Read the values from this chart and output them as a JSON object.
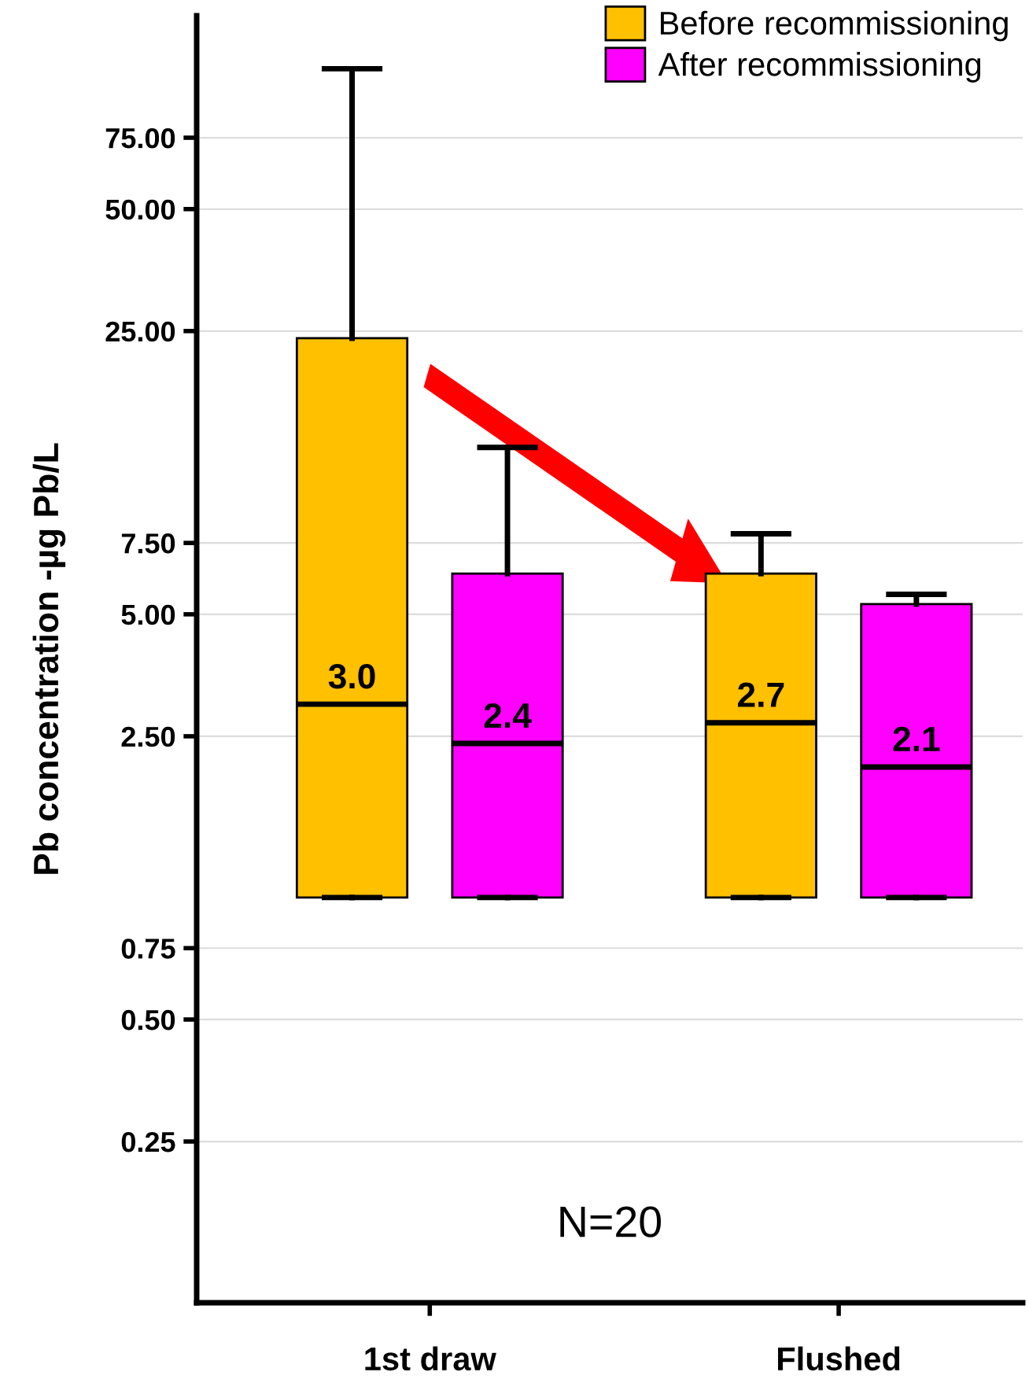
{
  "chart_data": {
    "type": "box",
    "ylabel": "Pb concentration -µg Pb/L",
    "categories": [
      "1st draw",
      "Flushed"
    ],
    "series": [
      {
        "name": "Before recommissioning",
        "color": "#ffc000",
        "value_labels": [
          "3.0",
          "2.7"
        ],
        "boxes": [
          {
            "low": 1.0,
            "q1": 1.0,
            "median": 3.0,
            "q3": 24,
            "high": 111
          },
          {
            "low": 1.0,
            "q1": 1.0,
            "median": 2.7,
            "q3": 6.3,
            "high": 7.9
          }
        ]
      },
      {
        "name": "After recommissioning",
        "color": "#ff00ff",
        "value_labels": [
          "2.4",
          "2.1"
        ],
        "boxes": [
          {
            "low": 1.0,
            "q1": 1.0,
            "median": 2.4,
            "q3": 6.3,
            "high": 12.9
          },
          {
            "low": 1.0,
            "q1": 1.0,
            "median": 2.1,
            "q3": 5.3,
            "high": 5.6
          }
        ]
      }
    ],
    "log": true,
    "ylim": [
      0.1,
      150
    ],
    "yticks": [
      {
        "value": 0.25,
        "label": "0.25"
      },
      {
        "value": 0.5,
        "label": "0.50"
      },
      {
        "value": 0.75,
        "label": "0.75"
      },
      {
        "value": 2.5,
        "label": "2.50"
      },
      {
        "value": 5,
        "label": "5.00"
      },
      {
        "value": 7.5,
        "label": "7.50"
      },
      {
        "value": 25,
        "label": "25.00"
      },
      {
        "value": 50,
        "label": "50.00"
      },
      {
        "value": 75,
        "label": "75.00"
      }
    ],
    "grid": "y",
    "legend": "top right",
    "annotations": [
      "N=20"
    ]
  }
}
